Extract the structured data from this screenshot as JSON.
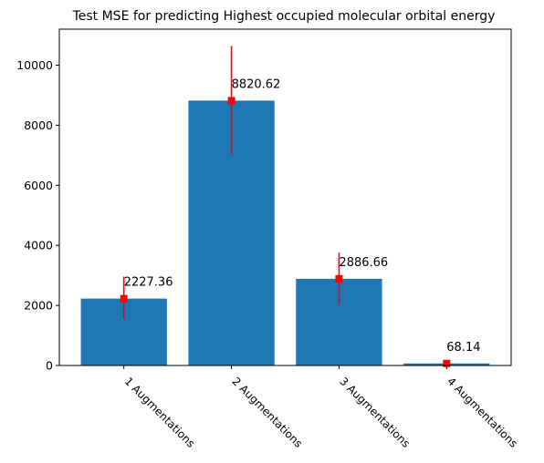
{
  "chart_data": {
    "type": "bar",
    "title": "Test MSE for predicting Highest occupied molecular orbital energy",
    "xlabel": "",
    "ylabel": "",
    "categories": [
      "1 Augmentations",
      "2 Augmentations",
      "3 Augmentations",
      "4 Augmentations"
    ],
    "values": [
      2227.36,
      8820.62,
      2886.66,
      68.14
    ],
    "data_labels": [
      "2227.36",
      "8820.62",
      "2886.66",
      "68.14"
    ],
    "error_low": [
      1550,
      7020,
      2030,
      20
    ],
    "error_high": [
      2960,
      10640,
      3760,
      120
    ],
    "ylim": [
      0,
      11200
    ],
    "yticks": [
      0,
      2000,
      4000,
      6000,
      8000,
      10000
    ],
    "ytick_labels": [
      "0",
      "2000",
      "4000",
      "6000",
      "8000",
      "10000"
    ],
    "grid": false,
    "bar_color": "#1f77b4",
    "marker_color": "#ff0000",
    "xtick_rotation": -45
  }
}
